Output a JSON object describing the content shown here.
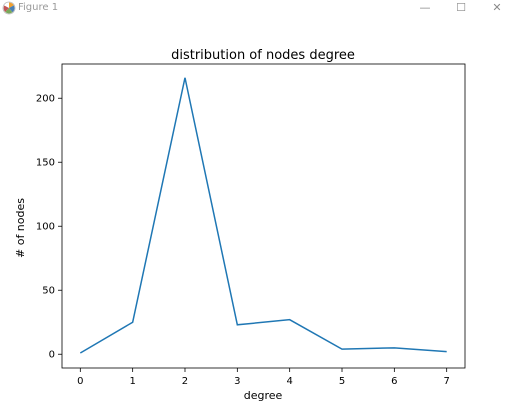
{
  "window": {
    "title": "Figure 1",
    "minimize_glyph": "—",
    "maximize_glyph": "☐",
    "close_glyph": "✕",
    "icon": "matplotlib-logo-icon"
  },
  "chart_data": {
    "type": "line",
    "title": "distribution of nodes degree",
    "xlabel": "degree",
    "ylabel": "# of nodes",
    "x": [
      0,
      1,
      2,
      3,
      4,
      5,
      6,
      7
    ],
    "y": [
      1,
      25,
      216,
      23,
      27,
      4,
      5,
      2
    ],
    "xticks": [
      0,
      1,
      2,
      3,
      4,
      5,
      6,
      7
    ],
    "yticks": [
      0,
      50,
      100,
      150,
      200
    ],
    "xlim": [
      -0.35,
      7.35
    ],
    "ylim": [
      -10.75,
      226.75
    ],
    "grid": false,
    "line_color": "#1f77b4"
  }
}
